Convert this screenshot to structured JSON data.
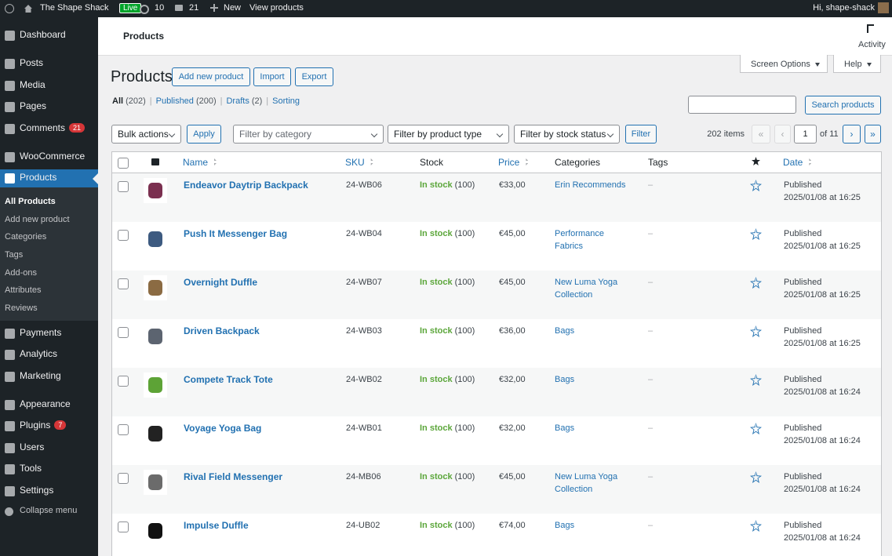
{
  "admin_bar": {
    "site_name": "The Shape Shack",
    "live": "Live",
    "updates": "10",
    "comments": "21",
    "new": "New",
    "view_products": "View products",
    "greeting": "Hi, shape-shack"
  },
  "sidebar": {
    "menu_top": [
      {
        "label": "Dashboard"
      },
      {
        "label": "Posts"
      },
      {
        "label": "Media"
      },
      {
        "label": "Pages"
      },
      {
        "label": "Comments",
        "badge": "21"
      },
      {
        "label": "WooCommerce"
      },
      {
        "label": "Products"
      }
    ],
    "submenu": [
      "All Products",
      "Add new product",
      "Categories",
      "Tags",
      "Add-ons",
      "Attributes",
      "Reviews"
    ],
    "menu_bottom": [
      {
        "label": "Payments"
      },
      {
        "label": "Analytics"
      },
      {
        "label": "Marketing"
      },
      {
        "label": "Appearance"
      },
      {
        "label": "Plugins",
        "badge": "7"
      },
      {
        "label": "Users"
      },
      {
        "label": "Tools"
      },
      {
        "label": "Settings"
      }
    ],
    "collapse": "Collapse menu"
  },
  "header": {
    "title": "Products",
    "activity": "Activity",
    "screen_options": "Screen Options",
    "help": "Help"
  },
  "page": {
    "heading": "Products",
    "buttons": [
      "Add new product",
      "Import",
      "Export"
    ],
    "views": [
      {
        "label": "All",
        "count": "(202)"
      },
      {
        "label": "Published",
        "count": "(200)"
      },
      {
        "label": "Drafts",
        "count": "(2)"
      },
      {
        "label": "Sorting"
      }
    ],
    "separator": "|",
    "search_button": "Search products",
    "bulk_actions": "Bulk actions",
    "apply": "Apply",
    "filter_category": "Filter by category",
    "filter_type": "Filter by product type",
    "filter_stock": "Filter by stock status",
    "filter": "Filter",
    "pagination": {
      "items": "202 items",
      "first": "«",
      "prev": "‹",
      "current": "1",
      "of": "of 11",
      "next": "›",
      "last": "»"
    }
  },
  "table": {
    "columns": [
      "Name",
      "SKU",
      "Stock",
      "Price",
      "Categories",
      "Tags",
      "Date"
    ],
    "rows": [
      {
        "name": "Endeavor Daytrip Backpack",
        "sku": "24-WB06",
        "stock": "In stock",
        "stock_count": "(100)",
        "price": "€33,00",
        "categories": "Erin Recommends",
        "tags": "–",
        "status": "Published",
        "date": "2025/01/08 at 16:25"
      },
      {
        "name": "Push It Messenger Bag",
        "sku": "24-WB04",
        "stock": "In stock",
        "stock_count": "(100)",
        "price": "€45,00",
        "categories": "Performance Fabrics",
        "tags": "–",
        "status": "Published",
        "date": "2025/01/08 at 16:25"
      },
      {
        "name": "Overnight Duffle",
        "sku": "24-WB07",
        "stock": "In stock",
        "stock_count": "(100)",
        "price": "€45,00",
        "categories": "New Luma Yoga Collection",
        "tags": "–",
        "status": "Published",
        "date": "2025/01/08 at 16:25"
      },
      {
        "name": "Driven Backpack",
        "sku": "24-WB03",
        "stock": "In stock",
        "stock_count": "(100)",
        "price": "€36,00",
        "categories": "Bags",
        "tags": "–",
        "status": "Published",
        "date": "2025/01/08 at 16:25"
      },
      {
        "name": "Compete Track Tote",
        "sku": "24-WB02",
        "stock": "In stock",
        "stock_count": "(100)",
        "price": "€32,00",
        "categories": "Bags",
        "tags": "–",
        "status": "Published",
        "date": "2025/01/08 at 16:24"
      },
      {
        "name": "Voyage Yoga Bag",
        "sku": "24-WB01",
        "stock": "In stock",
        "stock_count": "(100)",
        "price": "€32,00",
        "categories": "Bags",
        "tags": "–",
        "status": "Published",
        "date": "2025/01/08 at 16:24"
      },
      {
        "name": "Rival Field Messenger",
        "sku": "24-MB06",
        "stock": "In stock",
        "stock_count": "(100)",
        "price": "€45,00",
        "categories": "New Luma Yoga Collection",
        "tags": "–",
        "status": "Published",
        "date": "2025/01/08 at 16:24"
      },
      {
        "name": "Impulse Duffle",
        "sku": "24-UB02",
        "stock": "In stock",
        "stock_count": "(100)",
        "price": "€74,00",
        "categories": "Bags",
        "tags": "–",
        "status": "Published",
        "date": "2025/01/08 at 16:24"
      }
    ]
  }
}
